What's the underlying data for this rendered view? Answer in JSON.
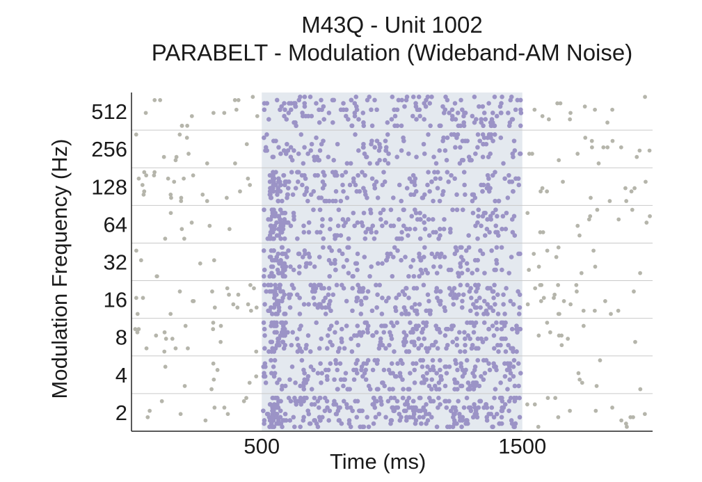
{
  "chart_data": {
    "type": "scatter",
    "title": "M43Q - Unit 1002",
    "subtitle": "PARABELT - Modulation (Wideband-AM Noise)",
    "xlabel": "Time (ms)",
    "ylabel": "Modulation Frequency (Hz)",
    "xlim": [
      0,
      2000
    ],
    "x_ticks": [
      500,
      1500
    ],
    "y_categories": [
      "2",
      "4",
      "8",
      "16",
      "32",
      "64",
      "128",
      "256",
      "512"
    ],
    "stimulus_window": [
      500,
      1500
    ],
    "grid": "horizontal",
    "colors": {
      "stimulus_dots": "#9b93c6",
      "baseline_dots": "#b5b5ab",
      "stimulus_shading": "#e4e9ef",
      "gridlines": "#c9c9c9",
      "axis": "#222222"
    },
    "trials_per_row": 10,
    "spikes": [
      {
        "modulation_frequency": "2",
        "baseline_rate_per_trial": 3,
        "stimulus_rate_per_trial": 30,
        "onset_burst": true
      },
      {
        "modulation_frequency": "4",
        "baseline_rate_per_trial": 2,
        "stimulus_rate_per_trial": 22,
        "onset_burst": false
      },
      {
        "modulation_frequency": "8",
        "baseline_rate_per_trial": 3,
        "stimulus_rate_per_trial": 19,
        "onset_burst": true
      },
      {
        "modulation_frequency": "16",
        "baseline_rate_per_trial": 4,
        "stimulus_rate_per_trial": 20,
        "onset_burst": true
      },
      {
        "modulation_frequency": "32",
        "baseline_rate_per_trial": 2,
        "stimulus_rate_per_trial": 17,
        "onset_burst": true
      },
      {
        "modulation_frequency": "64",
        "baseline_rate_per_trial": 2,
        "stimulus_rate_per_trial": 15,
        "onset_burst": true
      },
      {
        "modulation_frequency": "128",
        "baseline_rate_per_trial": 4,
        "stimulus_rate_per_trial": 15,
        "onset_burst": true
      },
      {
        "modulation_frequency": "256",
        "baseline_rate_per_trial": 3,
        "stimulus_rate_per_trial": 14,
        "onset_burst": false
      },
      {
        "modulation_frequency": "512",
        "baseline_rate_per_trial": 3,
        "stimulus_rate_per_trial": 18,
        "onset_burst": false
      }
    ]
  }
}
